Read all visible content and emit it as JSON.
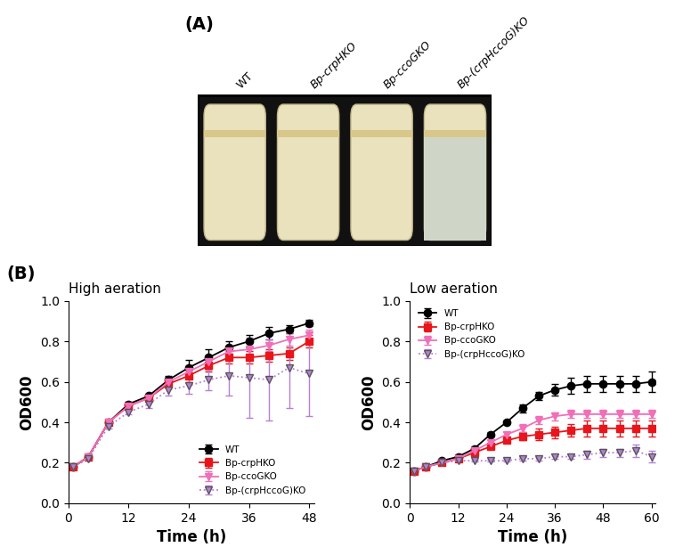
{
  "panels": {
    "a": {
      "label": "(A)",
      "tubes": [
        "WT",
        "Bp-crpHKO",
        "Bp-ccoGKO",
        "Bp-(crpHccoG)KO"
      ]
    },
    "b": {
      "label": "(B)"
    }
  },
  "chart_data": [
    {
      "type": "line",
      "title": "High aeration",
      "x_label": "Time (h)",
      "y_label": "OD600",
      "xlim": [
        0,
        49
      ],
      "xticks": [
        0,
        12,
        24,
        36,
        48
      ],
      "ylim": [
        0.0,
        1.0
      ],
      "yticks": [
        0.0,
        0.2,
        0.4,
        0.6,
        0.8,
        1.0
      ],
      "legend": "lower right",
      "x": [
        1,
        4,
        8,
        12,
        16,
        20,
        24,
        28,
        32,
        36,
        40,
        44,
        48
      ],
      "series": [
        {
          "name": "WT",
          "color": "#000000",
          "marker": "circle",
          "line_style": "solid",
          "values": [
            0.18,
            0.23,
            0.4,
            0.49,
            0.53,
            0.61,
            0.67,
            0.72,
            0.77,
            0.8,
            0.84,
            0.86,
            0.89
          ],
          "errors": [
            0.005,
            0.008,
            0.01,
            0.01,
            0.01,
            0.02,
            0.04,
            0.04,
            0.03,
            0.03,
            0.03,
            0.02,
            0.015
          ]
        },
        {
          "name": "Bp-crpHKO",
          "color": "#e8151b",
          "marker": "square",
          "line_style": "solid",
          "values": [
            0.18,
            0.23,
            0.4,
            0.48,
            0.52,
            0.59,
            0.63,
            0.68,
            0.72,
            0.72,
            0.73,
            0.74,
            0.8
          ],
          "errors": [
            0.005,
            0.008,
            0.01,
            0.01,
            0.01,
            0.02,
            0.03,
            0.03,
            0.03,
            0.03,
            0.03,
            0.03,
            0.03
          ]
        },
        {
          "name": "Bp-ccoGKO",
          "color": "#f06fb8",
          "marker": "triangle_down",
          "line_style": "solid",
          "values": [
            0.18,
            0.23,
            0.4,
            0.48,
            0.52,
            0.6,
            0.65,
            0.7,
            0.75,
            0.76,
            0.78,
            0.81,
            0.83
          ],
          "errors": [
            0.005,
            0.008,
            0.01,
            0.01,
            0.01,
            0.02,
            0.03,
            0.03,
            0.03,
            0.03,
            0.03,
            0.03,
            0.03
          ]
        },
        {
          "name": "Bp-(crpHccoG)KO",
          "color": "#b77fd6",
          "marker": "triangle_down",
          "line_style": "dotted",
          "values": [
            0.18,
            0.22,
            0.38,
            0.45,
            0.49,
            0.56,
            0.58,
            0.61,
            0.63,
            0.62,
            0.61,
            0.67,
            0.64
          ],
          "errors": [
            0.005,
            0.008,
            0.01,
            0.01,
            0.02,
            0.03,
            0.04,
            0.05,
            0.1,
            0.2,
            0.2,
            0.2,
            0.21
          ]
        }
      ]
    },
    {
      "type": "line",
      "title": "Low aeration",
      "x_label": "Time (h)",
      "y_label": "OD600",
      "xlim": [
        0,
        61
      ],
      "xticks": [
        0,
        12,
        24,
        36,
        48,
        60
      ],
      "ylim": [
        0.0,
        1.0
      ],
      "yticks": [
        0.0,
        0.2,
        0.4,
        0.6,
        0.8,
        1.0
      ],
      "legend": "upper left",
      "x": [
        1,
        4,
        8,
        12,
        16,
        20,
        24,
        28,
        32,
        36,
        40,
        44,
        48,
        52,
        56,
        60
      ],
      "series": [
        {
          "name": "WT",
          "color": "#000000",
          "marker": "circle",
          "line_style": "solid",
          "values": [
            0.16,
            0.18,
            0.21,
            0.23,
            0.27,
            0.34,
            0.4,
            0.47,
            0.53,
            0.56,
            0.58,
            0.59,
            0.59,
            0.59,
            0.59,
            0.6
          ],
          "errors": [
            0.005,
            0.005,
            0.005,
            0.01,
            0.01,
            0.01,
            0.01,
            0.02,
            0.02,
            0.03,
            0.04,
            0.04,
            0.04,
            0.04,
            0.04,
            0.05
          ]
        },
        {
          "name": "Bp-crpHKO",
          "color": "#e8151b",
          "marker": "square",
          "line_style": "solid",
          "values": [
            0.16,
            0.18,
            0.2,
            0.22,
            0.25,
            0.28,
            0.31,
            0.33,
            0.34,
            0.35,
            0.36,
            0.37,
            0.37,
            0.37,
            0.37,
            0.37
          ],
          "errors": [
            0.005,
            0.005,
            0.005,
            0.01,
            0.01,
            0.01,
            0.01,
            0.02,
            0.03,
            0.03,
            0.03,
            0.04,
            0.04,
            0.04,
            0.04,
            0.04
          ]
        },
        {
          "name": "Bp-ccoGKO",
          "color": "#f06fb8",
          "marker": "triangle_down",
          "line_style": "solid",
          "values": [
            0.16,
            0.18,
            0.2,
            0.22,
            0.26,
            0.3,
            0.34,
            0.37,
            0.41,
            0.43,
            0.44,
            0.44,
            0.44,
            0.44,
            0.44,
            0.44
          ],
          "errors": [
            0.005,
            0.005,
            0.005,
            0.01,
            0.01,
            0.01,
            0.01,
            0.02,
            0.02,
            0.02,
            0.02,
            0.02,
            0.02,
            0.02,
            0.02,
            0.02
          ]
        },
        {
          "name": "Bp-(crpHccoG)KO",
          "color": "#b77fd6",
          "marker": "triangle_down",
          "line_style": "dotted",
          "values": [
            0.16,
            0.18,
            0.2,
            0.21,
            0.21,
            0.21,
            0.21,
            0.22,
            0.22,
            0.23,
            0.23,
            0.24,
            0.25,
            0.25,
            0.26,
            0.23
          ],
          "errors": [
            0.005,
            0.005,
            0.005,
            0.005,
            0.005,
            0.005,
            0.005,
            0.01,
            0.01,
            0.01,
            0.01,
            0.02,
            0.02,
            0.02,
            0.03,
            0.03
          ]
        }
      ]
    }
  ]
}
